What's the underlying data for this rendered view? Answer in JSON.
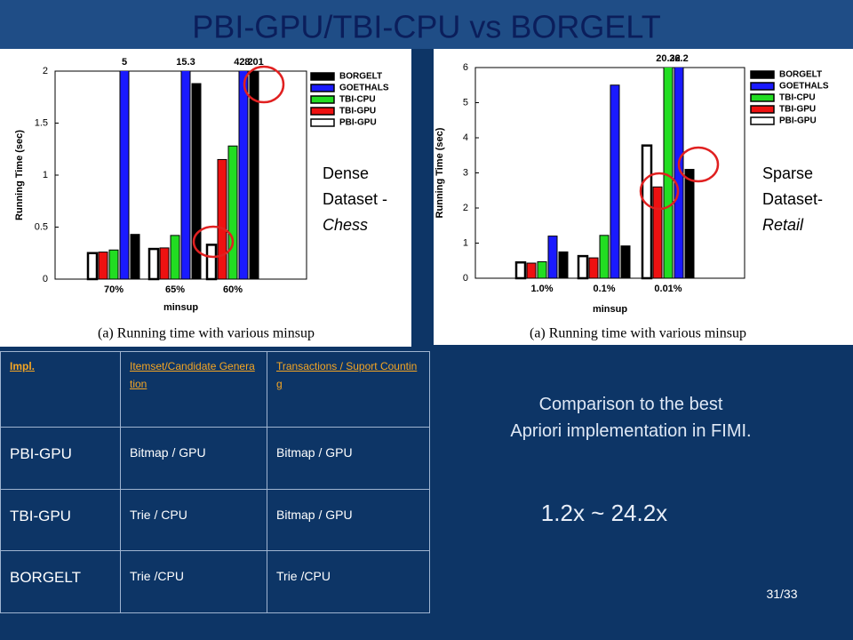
{
  "slide": {
    "title": "PBI-GPU/TBI-CPU vs BORGELT",
    "comparison": [
      "Comparison to the best",
      "Apriori implementation in FIMI."
    ],
    "speedup": "1.2x ~ 24.2x",
    "page": "31/33"
  },
  "chart_data": [
    {
      "type": "bar",
      "caption": "(a) Running time with various minsup",
      "xlabel": "minsup",
      "ylabel": "Running Time (sec)",
      "annotation": [
        "Dense",
        "Dataset -",
        "Chess"
      ],
      "categories": [
        "70%",
        "65%",
        "60%"
      ],
      "ylim": [
        0,
        2
      ],
      "yticks": [
        0,
        0.5,
        1,
        1.5,
        2
      ],
      "series": [
        {
          "name": "BORGELT",
          "color": "#000000",
          "values": [
            0.43,
            1.88,
            8.01
          ],
          "value_labels": [
            null,
            null,
            "8.01"
          ]
        },
        {
          "name": "GOETHALS",
          "color": "#1a1aff",
          "values": [
            5,
            15.3,
            42.2
          ],
          "value_labels": [
            "5",
            "15.3",
            "42.2"
          ]
        },
        {
          "name": "TBI-CPU",
          "color": "#22dd22",
          "values": [
            0.28,
            0.42,
            1.28
          ]
        },
        {
          "name": "TBI-GPU",
          "color": "#ee1111",
          "values": [
            0.26,
            0.3,
            1.15
          ]
        },
        {
          "name": "PBI-GPU",
          "color": "#ffffff",
          "values": [
            0.25,
            0.29,
            0.33
          ]
        }
      ]
    },
    {
      "type": "bar",
      "caption": "(a) Running time with various minsup",
      "xlabel": "minsup",
      "ylabel": "Running Time (sec)",
      "annotation": [
        "Sparse",
        "Dataset-",
        "Retail"
      ],
      "categories": [
        "1.0%",
        "0.1%",
        "0.01%"
      ],
      "ylim": [
        0,
        6
      ],
      "yticks": [
        0,
        1,
        2,
        3,
        4,
        5,
        6
      ],
      "series": [
        {
          "name": "BORGELT",
          "color": "#000000",
          "values": [
            0.75,
            0.92,
            3.1
          ]
        },
        {
          "name": "GOETHALS",
          "color": "#1a1aff",
          "values": [
            1.2,
            5.5,
            26.2
          ],
          "value_labels": [
            null,
            null,
            "26.2"
          ]
        },
        {
          "name": "TBI-CPU",
          "color": "#22dd22",
          "values": [
            0.47,
            1.22,
            20.32
          ],
          "value_labels": [
            null,
            null,
            "20.32"
          ]
        },
        {
          "name": "TBI-GPU",
          "color": "#ee1111",
          "values": [
            0.43,
            0.58,
            2.6
          ]
        },
        {
          "name": "PBI-GPU",
          "color": "#ffffff",
          "values": [
            0.45,
            0.63,
            3.78
          ]
        }
      ]
    }
  ],
  "table": {
    "header": [
      "Impl.",
      "Itemset/Candidate Generation",
      "Transactions / Suport Counting"
    ],
    "rows": [
      [
        "PBI-GPU",
        "Bitmap / GPU",
        "Bitmap / GPU"
      ],
      [
        "TBI-GPU",
        "Trie / CPU",
        "Bitmap / GPU"
      ],
      [
        "BORGELT",
        "Trie /CPU",
        "Trie /CPU"
      ]
    ]
  }
}
